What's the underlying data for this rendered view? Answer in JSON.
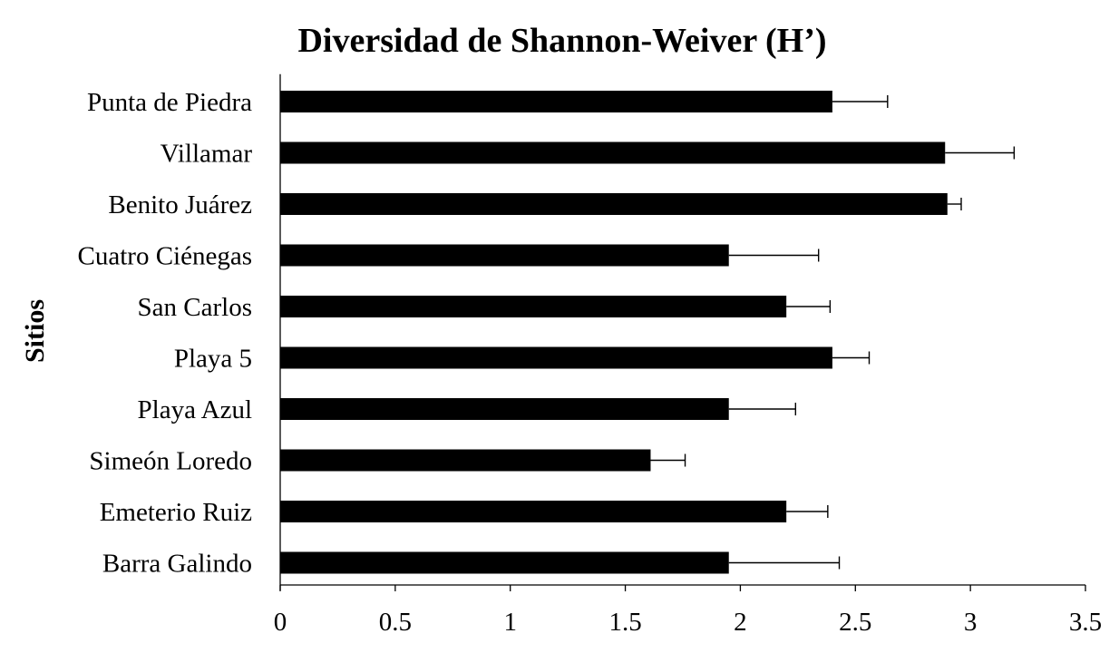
{
  "chart_data": {
    "type": "bar",
    "orientation": "horizontal",
    "title": "Diversidad de Shannon-Weiver (H’)",
    "xlabel": "",
    "ylabel": "Sitios",
    "categories": [
      "Punta de Piedra",
      "Villamar",
      "Benito Juárez",
      "Cuatro Ciénegas",
      "San Carlos",
      "Playa 5",
      "Playa Azul",
      "Simeón Loredo",
      "Emeterio Ruiz",
      "Barra Galindo"
    ],
    "values": [
      2.4,
      2.89,
      2.9,
      1.95,
      2.2,
      2.4,
      1.95,
      1.61,
      2.2,
      1.95
    ],
    "errors": [
      0.24,
      0.3,
      0.06,
      0.39,
      0.19,
      0.16,
      0.29,
      0.15,
      0.18,
      0.48
    ],
    "xlim": [
      0,
      3.5
    ],
    "xticks": [
      0,
      0.5,
      1,
      1.5,
      2,
      2.5,
      3,
      3.5
    ],
    "xtick_labels": [
      "0",
      "0.5",
      "1",
      "1.5",
      "2",
      "2.5",
      "3",
      "3.5"
    ],
    "grid": false,
    "bar_color": "#000000"
  }
}
